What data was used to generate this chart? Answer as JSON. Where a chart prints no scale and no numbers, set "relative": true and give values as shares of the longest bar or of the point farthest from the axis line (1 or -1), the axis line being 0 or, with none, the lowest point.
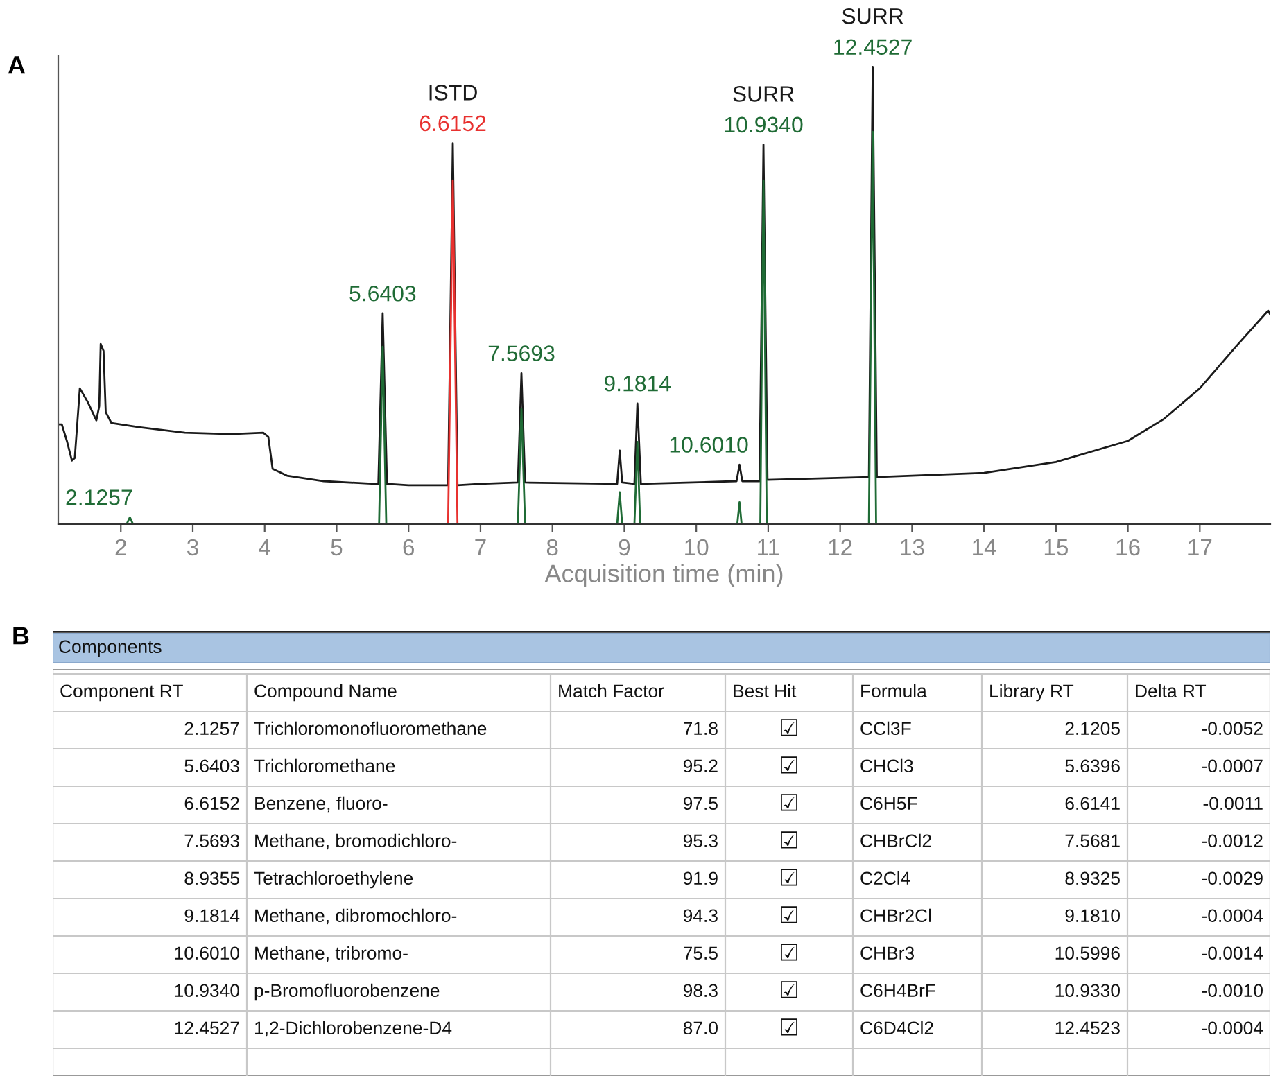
{
  "chart_data": [
    {
      "type": "line",
      "title": "A",
      "xlabel": "Acquisition time (min)",
      "xlim": [
        1.13,
        17.98
      ],
      "xticks": [
        2,
        3,
        4,
        5,
        6,
        7,
        8,
        9,
        10,
        11,
        12,
        13,
        14,
        15,
        16,
        17
      ],
      "relative": true,
      "tick_labels": "x",
      "annotations": [
        {
          "text": "2.1257",
          "x": 2.1257,
          "y": 0.015
        },
        {
          "text": "5.6403",
          "x": 5.6403,
          "y": 0.461
        },
        {
          "text": "ISTD",
          "x": 6.6152,
          "y": 0.833
        },
        {
          "text": "6.6152",
          "x": 6.6152,
          "y": 0.833
        },
        {
          "text": "7.5693",
          "x": 7.5693,
          "y": 0.33
        },
        {
          "text": "9.1814",
          "x": 9.1814,
          "y": 0.264
        },
        {
          "text": "10.6010",
          "x": 10.601,
          "y": 0.13
        },
        {
          "text": "SURR",
          "x": 10.934,
          "y": 0.83
        },
        {
          "text": "10.9340",
          "x": 10.934,
          "y": 0.83
        },
        {
          "text": "SURR",
          "x": 12.4527,
          "y": 1.0
        },
        {
          "text": "12.4527",
          "x": 12.4527,
          "y": 1.0
        }
      ],
      "series": [
        {
          "color": "#1a1a1a",
          "x": [
            1.13,
            1.18,
            1.25,
            1.32,
            1.36,
            1.43,
            1.54,
            1.66,
            1.7,
            1.72,
            1.76,
            1.79,
            1.87,
            2.25,
            2.89,
            3.53,
            3.98,
            4.05,
            4.11,
            4.31,
            4.82,
            5.53,
            5.58,
            5.6403,
            5.7,
            6.0,
            6.55,
            6.6152,
            6.68,
            7.0,
            7.52,
            7.5693,
            7.62,
            8.9,
            8.9355,
            8.97,
            9.14,
            9.1814,
            9.23,
            10.56,
            10.601,
            10.64,
            10.88,
            10.934,
            10.99,
            12.4,
            12.4527,
            12.51,
            13,
            14,
            15,
            16,
            16.5,
            17,
            17.5,
            17.95,
            17.98
          ],
          "values": [
            0.218,
            0.218,
            0.182,
            0.139,
            0.145,
            0.297,
            0.267,
            0.227,
            0.258,
            0.394,
            0.379,
            0.245,
            0.221,
            0.212,
            0.2,
            0.197,
            0.2,
            0.191,
            0.121,
            0.106,
            0.094,
            0.088,
            0.088,
            0.461,
            0.088,
            0.085,
            0.085,
            0.833,
            0.085,
            0.088,
            0.091,
            0.33,
            0.091,
            0.088,
            0.161,
            0.091,
            0.088,
            0.264,
            0.088,
            0.094,
            0.13,
            0.094,
            0.094,
            0.83,
            0.097,
            0.103,
            1.0,
            0.103,
            0.106,
            0.112,
            0.136,
            0.182,
            0.23,
            0.297,
            0.388,
            0.467,
            0.458
          ]
        },
        {
          "color": "#1f6b35",
          "x": [
            2.08,
            2.1257,
            2.17,
            2.2,
            5.59,
            5.6403,
            5.69,
            5.7,
            7.52,
            7.5693,
            7.62,
            7.65,
            8.9,
            8.9355,
            8.97,
            9.0,
            9.14,
            9.1814,
            9.22,
            9.25,
            10.57,
            10.601,
            10.63,
            10.65,
            10.89,
            10.934,
            10.98,
            11.0,
            12.4,
            12.4527,
            12.5
          ],
          "values": [
            0,
            0.015,
            0,
            null,
            0,
            0.388,
            0,
            null,
            0,
            0.252,
            0,
            null,
            0,
            0.07,
            0,
            null,
            0,
            0.18,
            0,
            null,
            0,
            0.048,
            0,
            null,
            0,
            0.752,
            0,
            null,
            0,
            0.858,
            0
          ]
        },
        {
          "color": "#e8312f",
          "x": [
            6.55,
            6.6152,
            6.68
          ],
          "values": [
            0,
            0.752,
            0
          ]
        }
      ]
    },
    {
      "type": "other",
      "title": "B",
      "subtitle": "Components",
      "categories": [
        "Component RT",
        "Compound Name",
        "Match Factor",
        "Best Hit",
        "Formula",
        "Library RT",
        "Delta RT"
      ],
      "cell_labels": [
        [
          "2.1257",
          "Trichloromonofluoromethane",
          "71.8",
          "☑",
          "CCl3F",
          "2.1205",
          "-0.0052"
        ],
        [
          "5.6403",
          "Trichloromethane",
          "95.2",
          "☑",
          "CHCl3",
          "5.6396",
          "-0.0007"
        ],
        [
          "6.6152",
          "Benzene, fluoro-",
          "97.5",
          "☑",
          "C6H5F",
          "6.6141",
          "-0.0011"
        ],
        [
          "7.5693",
          "Methane, bromodichloro-",
          "95.3",
          "☑",
          "CHBrCl2",
          "7.5681",
          "-0.0012"
        ],
        [
          "8.9355",
          "Tetrachloroethylene",
          "91.9",
          "☑",
          "C2Cl4",
          "8.9325",
          "-0.0029"
        ],
        [
          "9.1814",
          "Methane, dibromochloro-",
          "94.3",
          "☑",
          "CHBr2Cl",
          "9.1810",
          "-0.0004"
        ],
        [
          "10.6010",
          "Methane, tribromo-",
          "75.5",
          "☑",
          "CHBr3",
          "10.5996",
          "-0.0014"
        ],
        [
          "10.9340",
          "p-Bromofluorobenzene",
          "98.3",
          "☑",
          "C6H4BrF",
          "10.9330",
          "-0.0010"
        ],
        [
          "12.4527",
          "1,2-Dichlorobenzene-D4",
          "87.0",
          "☑",
          "C6D4Cl2",
          "12.4523",
          "-0.0004"
        ]
      ]
    }
  ]
}
